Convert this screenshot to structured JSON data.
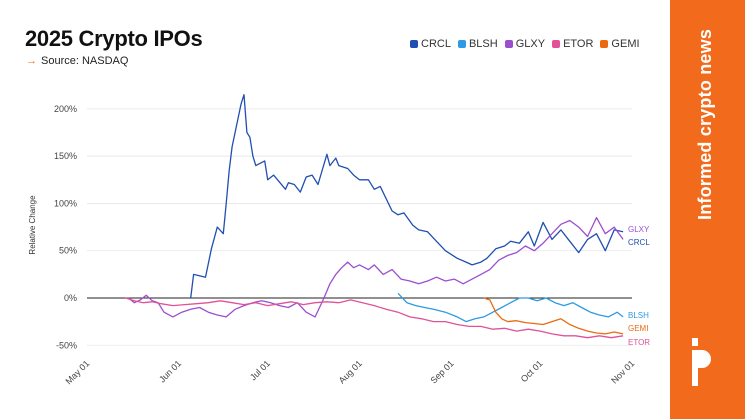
{
  "title": "2025 Crypto IPOs",
  "source": "Source: NASDAQ",
  "tagline": "Informed crypto news",
  "logo_icon": "brand-p-icon",
  "colors": {
    "accent": "#f26a1b",
    "CRCL": "#1f4fb0",
    "BLSH": "#2d9ae3",
    "GLXY": "#9b4fcf",
    "ETOR": "#e0519a",
    "GEMI": "#ea6a12"
  },
  "chart_data": {
    "type": "line",
    "title": "2025 Crypto IPOs",
    "ylabel": "Relative Change",
    "xlabel": "",
    "ylim": [
      -55,
      220
    ],
    "xlim": [
      "2025-05-01",
      "2025-11-01"
    ],
    "x_ticks": [
      "May 01",
      "Jun 01",
      "Jul 01",
      "Aug 01",
      "Sep 01",
      "Oct 01",
      "Nov 01"
    ],
    "y_ticks": [
      "-50%",
      "0%",
      "50%",
      "100%",
      "150%",
      "200%"
    ],
    "legend_position": "top-right",
    "series": [
      {
        "name": "CRCL",
        "color": "#1f4fb0",
        "points": [
          [
            "2025-06-05",
            0
          ],
          [
            "2025-06-06",
            25
          ],
          [
            "2025-06-10",
            22
          ],
          [
            "2025-06-12",
            52
          ],
          [
            "2025-06-14",
            75
          ],
          [
            "2025-06-16",
            68
          ],
          [
            "2025-06-17",
            100
          ],
          [
            "2025-06-18",
            135
          ],
          [
            "2025-06-19",
            160
          ],
          [
            "2025-06-20",
            175
          ],
          [
            "2025-06-22",
            205
          ],
          [
            "2025-06-23",
            215
          ],
          [
            "2025-06-24",
            175
          ],
          [
            "2025-06-25",
            170
          ],
          [
            "2025-06-26",
            150
          ],
          [
            "2025-06-27",
            140
          ],
          [
            "2025-06-30",
            145
          ],
          [
            "2025-07-01",
            125
          ],
          [
            "2025-07-03",
            130
          ],
          [
            "2025-07-07",
            115
          ],
          [
            "2025-07-08",
            122
          ],
          [
            "2025-07-10",
            120
          ],
          [
            "2025-07-12",
            112
          ],
          [
            "2025-07-14",
            128
          ],
          [
            "2025-07-16",
            130
          ],
          [
            "2025-07-18",
            120
          ],
          [
            "2025-07-21",
            152
          ],
          [
            "2025-07-22",
            140
          ],
          [
            "2025-07-24",
            148
          ],
          [
            "2025-07-25",
            140
          ],
          [
            "2025-07-28",
            137
          ],
          [
            "2025-07-30",
            130
          ],
          [
            "2025-08-01",
            125
          ],
          [
            "2025-08-04",
            125
          ],
          [
            "2025-08-06",
            115
          ],
          [
            "2025-08-08",
            118
          ],
          [
            "2025-08-12",
            92
          ],
          [
            "2025-08-14",
            88
          ],
          [
            "2025-08-16",
            90
          ],
          [
            "2025-08-19",
            77
          ],
          [
            "2025-08-21",
            72
          ],
          [
            "2025-08-24",
            70
          ],
          [
            "2025-08-27",
            60
          ],
          [
            "2025-08-30",
            50
          ],
          [
            "2025-09-03",
            42
          ],
          [
            "2025-09-06",
            38
          ],
          [
            "2025-09-08",
            35
          ],
          [
            "2025-09-11",
            38
          ],
          [
            "2025-09-13",
            42
          ],
          [
            "2025-09-16",
            52
          ],
          [
            "2025-09-19",
            55
          ],
          [
            "2025-09-21",
            60
          ],
          [
            "2025-09-24",
            58
          ],
          [
            "2025-09-27",
            70
          ],
          [
            "2025-09-29",
            55
          ],
          [
            "2025-10-02",
            80
          ],
          [
            "2025-10-05",
            62
          ],
          [
            "2025-10-08",
            72
          ],
          [
            "2025-10-11",
            60
          ],
          [
            "2025-10-14",
            48
          ],
          [
            "2025-10-17",
            62
          ],
          [
            "2025-10-20",
            68
          ],
          [
            "2025-10-23",
            50
          ],
          [
            "2025-10-26",
            72
          ],
          [
            "2025-10-29",
            70
          ]
        ]
      },
      {
        "name": "BLSH",
        "color": "#2d9ae3",
        "points": [
          [
            "2025-08-14",
            5
          ],
          [
            "2025-08-17",
            -5
          ],
          [
            "2025-08-20",
            -8
          ],
          [
            "2025-08-23",
            -10
          ],
          [
            "2025-08-26",
            -12
          ],
          [
            "2025-08-30",
            -15
          ],
          [
            "2025-09-03",
            -20
          ],
          [
            "2025-09-06",
            -25
          ],
          [
            "2025-09-09",
            -22
          ],
          [
            "2025-09-12",
            -20
          ],
          [
            "2025-09-15",
            -15
          ],
          [
            "2025-09-18",
            -10
          ],
          [
            "2025-09-21",
            -5
          ],
          [
            "2025-09-24",
            0
          ],
          [
            "2025-09-27",
            0
          ],
          [
            "2025-09-30",
            -3
          ],
          [
            "2025-10-03",
            0
          ],
          [
            "2025-10-06",
            -5
          ],
          [
            "2025-10-09",
            -8
          ],
          [
            "2025-10-12",
            -5
          ],
          [
            "2025-10-15",
            -10
          ],
          [
            "2025-10-18",
            -15
          ],
          [
            "2025-10-21",
            -18
          ],
          [
            "2025-10-24",
            -20
          ],
          [
            "2025-10-27",
            -15
          ],
          [
            "2025-10-29",
            -20
          ]
        ]
      },
      {
        "name": "GLXY",
        "color": "#9b4fcf",
        "points": [
          [
            "2025-05-15",
            0
          ],
          [
            "2025-05-17",
            -5
          ],
          [
            "2025-05-19",
            -2
          ],
          [
            "2025-05-21",
            3
          ],
          [
            "2025-05-23",
            -3
          ],
          [
            "2025-05-25",
            -5
          ],
          [
            "2025-05-27",
            -15
          ],
          [
            "2025-05-30",
            -20
          ],
          [
            "2025-06-02",
            -15
          ],
          [
            "2025-06-05",
            -12
          ],
          [
            "2025-06-08",
            -10
          ],
          [
            "2025-06-11",
            -15
          ],
          [
            "2025-06-14",
            -18
          ],
          [
            "2025-06-17",
            -20
          ],
          [
            "2025-06-20",
            -12
          ],
          [
            "2025-06-23",
            -8
          ],
          [
            "2025-06-26",
            -5
          ],
          [
            "2025-06-29",
            -3
          ],
          [
            "2025-07-02",
            -5
          ],
          [
            "2025-07-05",
            -8
          ],
          [
            "2025-07-08",
            -10
          ],
          [
            "2025-07-11",
            -5
          ],
          [
            "2025-07-14",
            -15
          ],
          [
            "2025-07-17",
            -20
          ],
          [
            "2025-07-20",
            0
          ],
          [
            "2025-07-22",
            15
          ],
          [
            "2025-07-24",
            25
          ],
          [
            "2025-07-26",
            32
          ],
          [
            "2025-07-28",
            38
          ],
          [
            "2025-07-30",
            32
          ],
          [
            "2025-08-01",
            35
          ],
          [
            "2025-08-04",
            30
          ],
          [
            "2025-08-06",
            35
          ],
          [
            "2025-08-09",
            25
          ],
          [
            "2025-08-12",
            30
          ],
          [
            "2025-08-15",
            20
          ],
          [
            "2025-08-18",
            18
          ],
          [
            "2025-08-21",
            15
          ],
          [
            "2025-08-24",
            18
          ],
          [
            "2025-08-27",
            22
          ],
          [
            "2025-08-30",
            18
          ],
          [
            "2025-09-02",
            20
          ],
          [
            "2025-09-05",
            15
          ],
          [
            "2025-09-08",
            20
          ],
          [
            "2025-09-11",
            25
          ],
          [
            "2025-09-14",
            30
          ],
          [
            "2025-09-17",
            40
          ],
          [
            "2025-09-20",
            45
          ],
          [
            "2025-09-23",
            48
          ],
          [
            "2025-09-26",
            55
          ],
          [
            "2025-09-29",
            50
          ],
          [
            "2025-10-02",
            58
          ],
          [
            "2025-10-05",
            68
          ],
          [
            "2025-10-08",
            78
          ],
          [
            "2025-10-11",
            82
          ],
          [
            "2025-10-14",
            75
          ],
          [
            "2025-10-17",
            65
          ],
          [
            "2025-10-20",
            85
          ],
          [
            "2025-10-23",
            68
          ],
          [
            "2025-10-26",
            75
          ],
          [
            "2025-10-29",
            62
          ]
        ]
      },
      {
        "name": "ETOR",
        "color": "#e0519a",
        "points": [
          [
            "2025-05-14",
            0
          ],
          [
            "2025-05-17",
            -3
          ],
          [
            "2025-05-20",
            -5
          ],
          [
            "2025-05-23",
            -4
          ],
          [
            "2025-05-26",
            -6
          ],
          [
            "2025-05-30",
            -8
          ],
          [
            "2025-06-03",
            -7
          ],
          [
            "2025-06-07",
            -6
          ],
          [
            "2025-06-11",
            -5
          ],
          [
            "2025-06-15",
            -3
          ],
          [
            "2025-06-19",
            -5
          ],
          [
            "2025-06-23",
            -7
          ],
          [
            "2025-06-27",
            -5
          ],
          [
            "2025-07-01",
            -8
          ],
          [
            "2025-07-05",
            -6
          ],
          [
            "2025-07-09",
            -4
          ],
          [
            "2025-07-13",
            -7
          ],
          [
            "2025-07-17",
            -5
          ],
          [
            "2025-07-21",
            -4
          ],
          [
            "2025-07-25",
            -5
          ],
          [
            "2025-07-29",
            -2
          ],
          [
            "2025-08-02",
            -5
          ],
          [
            "2025-08-06",
            -8
          ],
          [
            "2025-08-10",
            -12
          ],
          [
            "2025-08-14",
            -15
          ],
          [
            "2025-08-18",
            -20
          ],
          [
            "2025-08-22",
            -22
          ],
          [
            "2025-08-26",
            -25
          ],
          [
            "2025-08-30",
            -25
          ],
          [
            "2025-09-03",
            -28
          ],
          [
            "2025-09-07",
            -30
          ],
          [
            "2025-09-11",
            -30
          ],
          [
            "2025-09-15",
            -33
          ],
          [
            "2025-09-19",
            -32
          ],
          [
            "2025-09-23",
            -35
          ],
          [
            "2025-09-27",
            -33
          ],
          [
            "2025-10-01",
            -35
          ],
          [
            "2025-10-05",
            -38
          ],
          [
            "2025-10-09",
            -40
          ],
          [
            "2025-10-13",
            -40
          ],
          [
            "2025-10-17",
            -42
          ],
          [
            "2025-10-21",
            -40
          ],
          [
            "2025-10-25",
            -42
          ],
          [
            "2025-10-29",
            -40
          ]
        ]
      },
      {
        "name": "GEMI",
        "color": "#ea6a12",
        "points": [
          [
            "2025-09-12",
            0
          ],
          [
            "2025-09-14",
            -2
          ],
          [
            "2025-09-16",
            -15
          ],
          [
            "2025-09-18",
            -22
          ],
          [
            "2025-09-20",
            -25
          ],
          [
            "2025-09-23",
            -24
          ],
          [
            "2025-09-26",
            -26
          ],
          [
            "2025-09-29",
            -27
          ],
          [
            "2025-10-02",
            -28
          ],
          [
            "2025-10-05",
            -25
          ],
          [
            "2025-10-08",
            -22
          ],
          [
            "2025-10-11",
            -28
          ],
          [
            "2025-10-14",
            -32
          ],
          [
            "2025-10-17",
            -35
          ],
          [
            "2025-10-20",
            -37
          ],
          [
            "2025-10-23",
            -38
          ],
          [
            "2025-10-26",
            -36
          ],
          [
            "2025-10-29",
            -38
          ]
        ]
      }
    ],
    "end_labels": [
      "GLXY",
      "CRCL",
      "BLSH",
      "GEMI",
      "ETOR"
    ]
  }
}
